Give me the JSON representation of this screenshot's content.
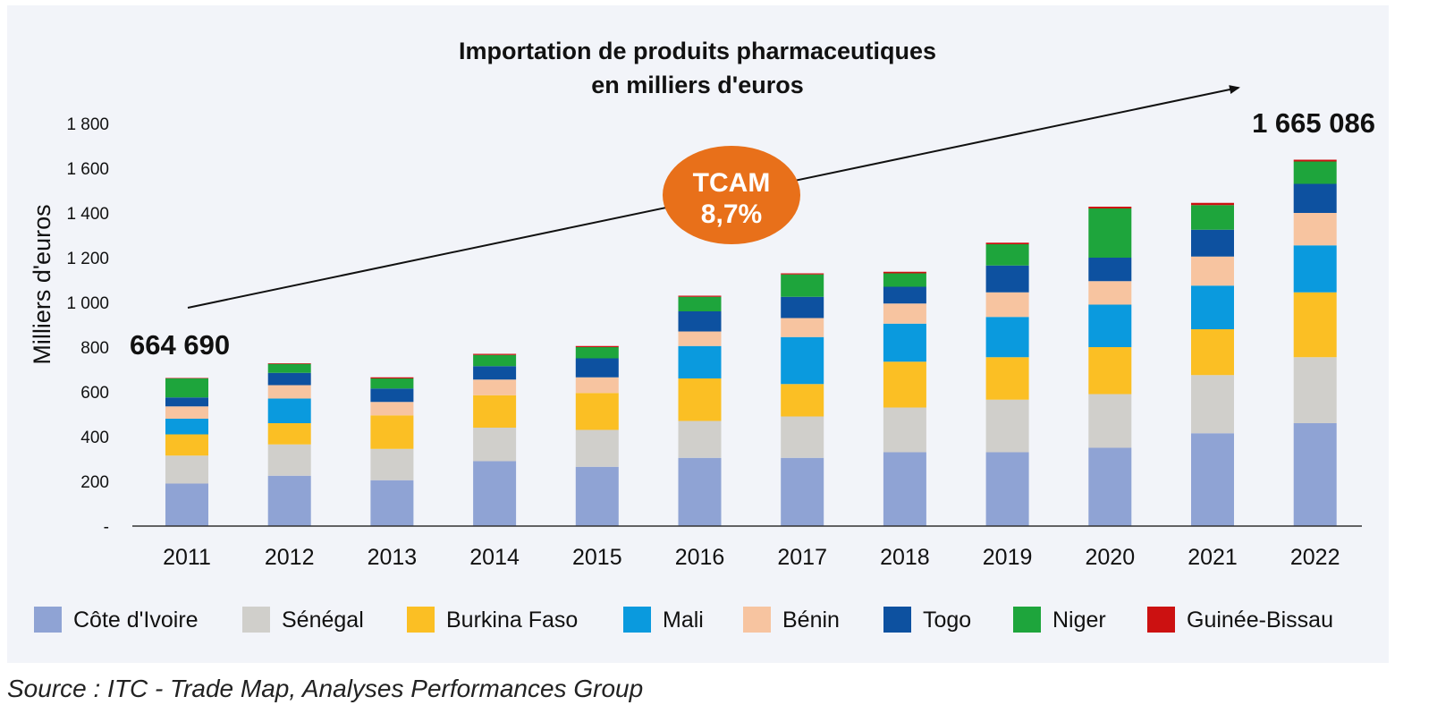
{
  "colors": {
    "panel": "#f2f4f9",
    "axis": "#333333",
    "tcam_fill": "#e8701a"
  },
  "chart_data": {
    "type": "bar",
    "stacked": true,
    "title_lines": [
      "Importation de produits pharmaceutiques",
      "en milliers d'euros"
    ],
    "ylabel": "Milliers d'euros",
    "xlabel": "",
    "ylim": [
      0,
      1800
    ],
    "yticks": [
      0,
      200,
      400,
      600,
      800,
      1000,
      1200,
      1400,
      1600,
      1800
    ],
    "ytick_labels": [
      "-",
      "200",
      "400",
      "600",
      "800",
      "1 000",
      "1 200",
      "1 400",
      "1 600",
      "1 800"
    ],
    "grid": false,
    "legend_position": "bottom",
    "categories": [
      "2011",
      "2012",
      "2013",
      "2014",
      "2015",
      "2016",
      "2017",
      "2018",
      "2019",
      "2020",
      "2021",
      "2022"
    ],
    "series": [
      {
        "name": "Côte d'Ivoire",
        "color": "#8fa3d4",
        "values": [
          190,
          225,
          205,
          290,
          265,
          305,
          305,
          330,
          330,
          350,
          415,
          460
        ]
      },
      {
        "name": "Sénégal",
        "color": "#d0cfcb",
        "values": [
          125,
          140,
          140,
          150,
          165,
          165,
          185,
          200,
          235,
          240,
          260,
          295
        ]
      },
      {
        "name": "Burkina Faso",
        "color": "#fbbf24",
        "values": [
          95,
          95,
          150,
          145,
          165,
          190,
          145,
          205,
          190,
          210,
          205,
          290
        ]
      },
      {
        "name": "Mali",
        "color": "#0a9ade",
        "values": [
          70,
          110,
          0,
          0,
          0,
          145,
          210,
          170,
          180,
          190,
          195,
          210
        ]
      },
      {
        "name": "Bénin",
        "color": "#f7c4a0",
        "values": [
          55,
          60,
          60,
          70,
          70,
          65,
          85,
          90,
          110,
          105,
          130,
          145
        ]
      },
      {
        "name": "Togo",
        "color": "#0d51a0",
        "values": [
          40,
          55,
          60,
          60,
          85,
          90,
          95,
          75,
          120,
          105,
          120,
          130
        ]
      },
      {
        "name": "Niger",
        "color": "#1ea53c",
        "values": [
          85,
          40,
          45,
          50,
          50,
          65,
          100,
          60,
          95,
          220,
          110,
          100
        ]
      },
      {
        "name": "Guinée-Bissau",
        "color": "#cc1111",
        "values": [
          2,
          3,
          5,
          5,
          5,
          5,
          5,
          7,
          7,
          8,
          10,
          8
        ]
      }
    ],
    "annotations": {
      "start_value": "664 690",
      "end_value": "1 665 086",
      "tcam_label": "TCAM",
      "tcam_value": "8,7%"
    }
  },
  "source": "Source : ITC - Trade Map, Analyses Performances Group"
}
